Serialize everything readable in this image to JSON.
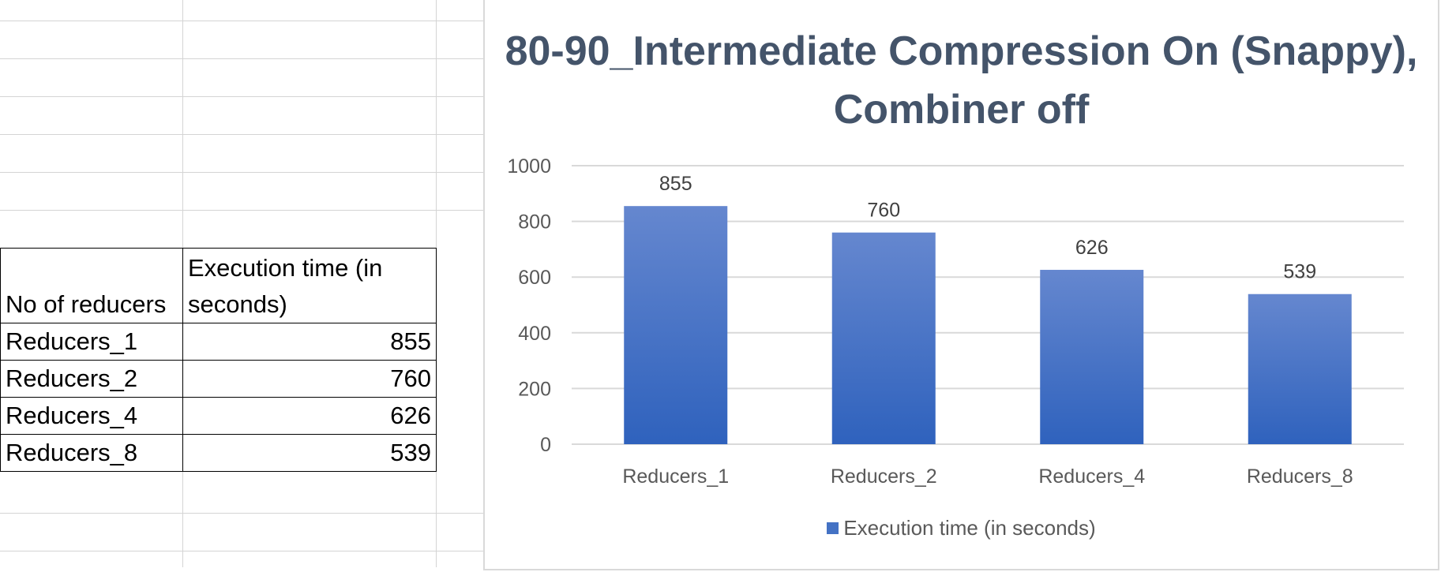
{
  "table": {
    "header_col1": "No of reducers",
    "header_col2": "Execution time (in seconds)",
    "rows": [
      {
        "label": "Reducers_1",
        "value": "855"
      },
      {
        "label": "Reducers_2",
        "value": "760"
      },
      {
        "label": "Reducers_4",
        "value": "626"
      },
      {
        "label": "Reducers_8",
        "value": "539"
      }
    ]
  },
  "chart_data": {
    "type": "bar",
    "title": "80-90_Intermediate Compression On (Snappy), Combiner off",
    "categories": [
      "Reducers_1",
      "Reducers_2",
      "Reducers_4",
      "Reducers_8"
    ],
    "series": [
      {
        "name": "Execution time (in seconds)",
        "values": [
          855,
          760,
          626,
          539
        ],
        "color": "#4472c4"
      }
    ],
    "ylim": [
      0,
      1000
    ],
    "yticks": [
      0,
      200,
      400,
      600,
      800,
      1000
    ],
    "xlabel": "",
    "ylabel": "",
    "grid": true,
    "legend": "bottom",
    "data_labels": true
  }
}
